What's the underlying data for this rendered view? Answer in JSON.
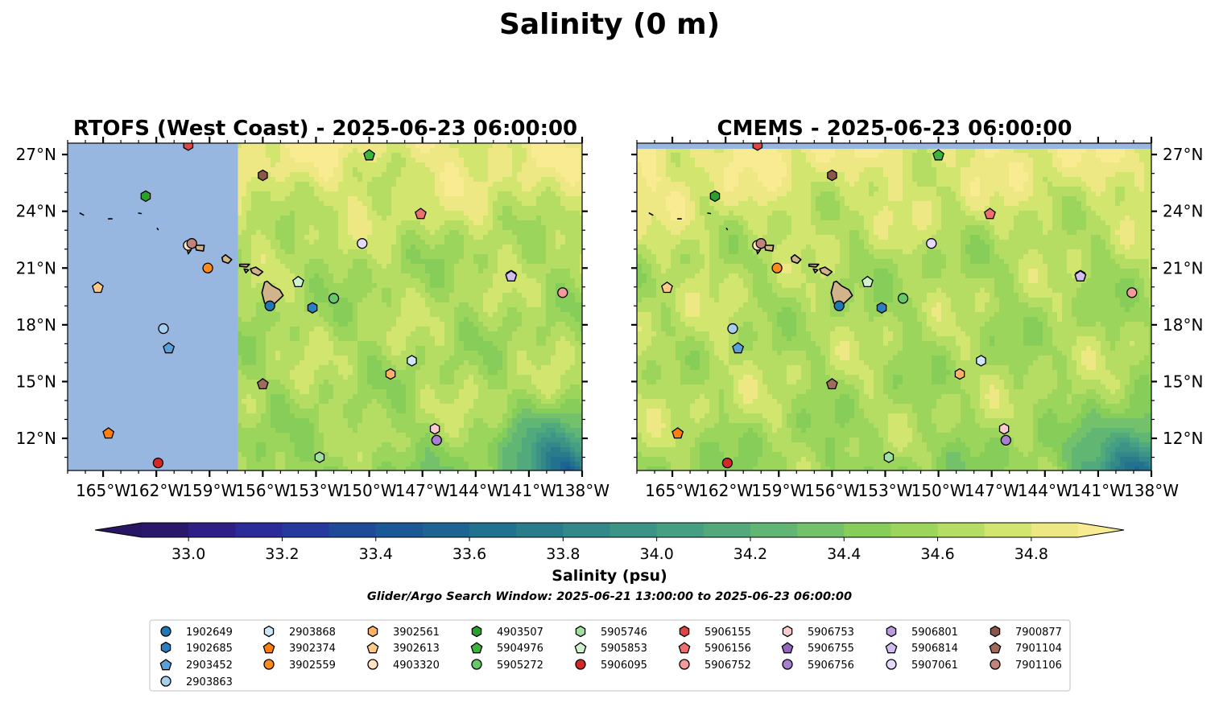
{
  "figure_title": "Salinity (0 m)",
  "panels": [
    {
      "title": "RTOFS (West Coast) - 2025-06-23 06:00:00",
      "missing_data_west_of": "157.4°W"
    },
    {
      "title": "CMEMS - 2025-06-23 06:00:00",
      "missing_data_north_of": "27.3°N"
    }
  ],
  "axes": {
    "lon_range": [
      -167.0,
      -138.0
    ],
    "lat_range": [
      10.3,
      27.6
    ],
    "x_ticks": [
      "165°W",
      "162°W",
      "159°W",
      "156°W",
      "153°W",
      "150°W",
      "147°W",
      "144°W",
      "141°W",
      "138°W"
    ],
    "y_ticks": [
      "27°N",
      "24°N",
      "21°N",
      "18°N",
      "15°N",
      "12°N"
    ]
  },
  "colorbar": {
    "label": "Salinity (psu)",
    "ticks": [
      "33.0",
      "33.2",
      "33.4",
      "33.6",
      "33.8",
      "34.0",
      "34.2",
      "34.4",
      "34.6",
      "34.8"
    ],
    "range": [
      32.9,
      34.9
    ],
    "step": 0.1,
    "colormap": "haline",
    "extend": "both"
  },
  "colors": {
    "missing_data": "#97b6e0",
    "land": "#d2b48c",
    "salinity_high": "#f9eb92",
    "salinity_mid": "#86cd5a",
    "salinity_low": "#2a3a9a"
  },
  "search_window": "Glider/Argo Search Window: 2025-06-21 13:00:00 to 2025-06-23 06:00:00",
  "legend": {
    "columns": 9,
    "entries": [
      {
        "id": "1902649",
        "marker": "circle",
        "color": "#1f77b4"
      },
      {
        "id": "1902685",
        "marker": "hexagon",
        "color": "#2b7fc1"
      },
      {
        "id": "2903452",
        "marker": "pentagon",
        "color": "#5aa1dc"
      },
      {
        "id": "2903863",
        "marker": "circle",
        "color": "#a6cfee"
      },
      {
        "id": "2903868",
        "marker": "hexagon",
        "color": "#cfe5f8"
      },
      {
        "id": "3902374",
        "marker": "pentagon",
        "color": "#ff7f0e"
      },
      {
        "id": "3902559",
        "marker": "circle",
        "color": "#ff8c1a"
      },
      {
        "id": "3902561",
        "marker": "hexagon",
        "color": "#ffb266"
      },
      {
        "id": "3902613",
        "marker": "pentagon",
        "color": "#ffc98a"
      },
      {
        "id": "4903320",
        "marker": "circle",
        "color": "#ffe3c2"
      },
      {
        "id": "4903507",
        "marker": "hexagon",
        "color": "#2ca02c"
      },
      {
        "id": "5904976",
        "marker": "pentagon",
        "color": "#3cb43c"
      },
      {
        "id": "5905272",
        "marker": "circle",
        "color": "#67c867"
      },
      {
        "id": "5905746",
        "marker": "hexagon",
        "color": "#9ee29e"
      },
      {
        "id": "5905853",
        "marker": "pentagon",
        "color": "#cdf3cd"
      },
      {
        "id": "5906095",
        "marker": "circle",
        "color": "#d62728"
      },
      {
        "id": "5906155",
        "marker": "hexagon",
        "color": "#e04444"
      },
      {
        "id": "5906156",
        "marker": "pentagon",
        "color": "#ec7070"
      },
      {
        "id": "5906752",
        "marker": "circle",
        "color": "#f49a9a"
      },
      {
        "id": "5906753",
        "marker": "hexagon",
        "color": "#fccccc"
      },
      {
        "id": "5906755",
        "marker": "pentagon",
        "color": "#9467bd"
      },
      {
        "id": "5906756",
        "marker": "circle",
        "color": "#a880cf"
      },
      {
        "id": "5906801",
        "marker": "hexagon",
        "color": "#bb9ae0"
      },
      {
        "id": "5906814",
        "marker": "pentagon",
        "color": "#d2bdf0"
      },
      {
        "id": "5907061",
        "marker": "circle",
        "color": "#e6dafc"
      },
      {
        "id": "7900877",
        "marker": "hexagon",
        "color": "#8c564b"
      },
      {
        "id": "7901104",
        "marker": "pentagon",
        "color": "#a06a5c"
      },
      {
        "id": "7901106",
        "marker": "circle",
        "color": "#c0847a"
      }
    ]
  },
  "observations": [
    {
      "id": "1902649",
      "lon": -155.6,
      "lat": 19.0
    },
    {
      "id": "1902685",
      "lon": -153.2,
      "lat": 18.9
    },
    {
      "id": "2903452",
      "lon": -161.3,
      "lat": 16.8
    },
    {
      "id": "2903863",
      "lon": -161.6,
      "lat": 17.8
    },
    {
      "id": "2903868",
      "lon": -147.6,
      "lat": 16.1
    },
    {
      "id": "3902374",
      "lon": -164.7,
      "lat": 12.3
    },
    {
      "id": "3902559",
      "lon": -159.1,
      "lat": 21.0
    },
    {
      "id": "3902561",
      "lon": -148.8,
      "lat": 15.4
    },
    {
      "id": "3902613",
      "lon": -165.3,
      "lat": 20.0
    },
    {
      "id": "4903320",
      "lon": -160.2,
      "lat": 22.2
    },
    {
      "id": "4903507",
      "lon": -162.6,
      "lat": 24.8
    },
    {
      "id": "5904976",
      "lon": -150.0,
      "lat": 27.0
    },
    {
      "id": "5905272",
      "lon": -152.0,
      "lat": 19.4
    },
    {
      "id": "5905746",
      "lon": -152.8,
      "lat": 11.0
    },
    {
      "id": "5905853",
      "lon": -154.0,
      "lat": 20.3
    },
    {
      "id": "5906095",
      "lon": -161.9,
      "lat": 10.7
    },
    {
      "id": "5906155",
      "lon": -160.2,
      "lat": 27.5
    },
    {
      "id": "5906156",
      "lon": -147.1,
      "lat": 23.9
    },
    {
      "id": "5906752",
      "lon": -139.1,
      "lat": 19.7
    },
    {
      "id": "5906753",
      "lon": -146.3,
      "lat": 12.5
    },
    {
      "id": "5906755",
      "lon": -142.0,
      "lat": 20.6
    },
    {
      "id": "5906756",
      "lon": -146.2,
      "lat": 11.9
    },
    {
      "id": "5906801",
      "lon": -142.0,
      "lat": 20.6
    },
    {
      "id": "5906814",
      "lon": -142.0,
      "lat": 20.6
    },
    {
      "id": "5907061",
      "lon": -150.4,
      "lat": 22.3
    },
    {
      "id": "7900877",
      "lon": -156.0,
      "lat": 25.9
    },
    {
      "id": "7901104",
      "lon": -156.0,
      "lat": 14.9
    },
    {
      "id": "7901106",
      "lon": -160.0,
      "lat": 22.3
    }
  ]
}
